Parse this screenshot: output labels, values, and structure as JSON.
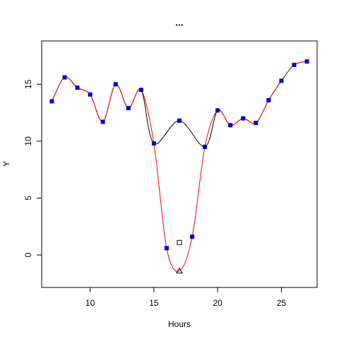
{
  "chart_data": {
    "type": "line",
    "title": "...",
    "xlabel": "Hours",
    "ylabel": "Y",
    "xlim": [
      6.2,
      27.8
    ],
    "ylim": [
      -2.85,
      18.8
    ],
    "xticks": [
      10,
      15,
      20,
      25
    ],
    "yticks": [
      0,
      5,
      10,
      15
    ],
    "series": [
      {
        "color": "#000000",
        "marker": "none",
        "x": [
          7,
          8,
          9,
          10,
          11,
          12,
          13,
          14,
          15,
          17,
          19,
          20,
          21,
          22,
          23,
          24,
          25,
          26,
          27
        ],
        "values": [
          13.5,
          15.6,
          14.7,
          14.1,
          11.7,
          15.0,
          12.9,
          14.5,
          9.8,
          11.8,
          9.5,
          12.7,
          11.4,
          12.0,
          11.6,
          13.6,
          15.3,
          16.7,
          17.0
        ]
      },
      {
        "color": "#ff0000",
        "marker": "none",
        "x": [
          7,
          8,
          9,
          10,
          11,
          12,
          13,
          14,
          15,
          16,
          17,
          18,
          19,
          20,
          21,
          22,
          23,
          24,
          25,
          26,
          27
        ],
        "values": [
          13.5,
          15.6,
          14.7,
          14.1,
          11.7,
          15.0,
          12.9,
          14.5,
          9.8,
          0.6,
          -1.4,
          1.6,
          9.5,
          12.7,
          11.4,
          12.0,
          11.6,
          13.6,
          15.3,
          16.7,
          17.0
        ]
      },
      {
        "color": "#0000cc",
        "marker": "square",
        "x": [
          7,
          8,
          9,
          10,
          11,
          12,
          13,
          14,
          15,
          16,
          17,
          18,
          19,
          20,
          21,
          22,
          23,
          24,
          25,
          26,
          27
        ],
        "values": [
          13.5,
          15.6,
          14.7,
          14.1,
          11.7,
          15.0,
          12.9,
          14.5,
          9.8,
          0.6,
          11.8,
          1.6,
          9.5,
          12.7,
          11.4,
          12.0,
          11.6,
          13.6,
          15.3,
          16.7,
          17.0
        ]
      },
      {
        "color": "#000000",
        "marker": "open-square",
        "x": [
          17
        ],
        "values": [
          1.1
        ]
      },
      {
        "color": "#000000",
        "marker": "open-triangle",
        "x": [
          17
        ],
        "values": [
          -1.4
        ]
      }
    ]
  }
}
